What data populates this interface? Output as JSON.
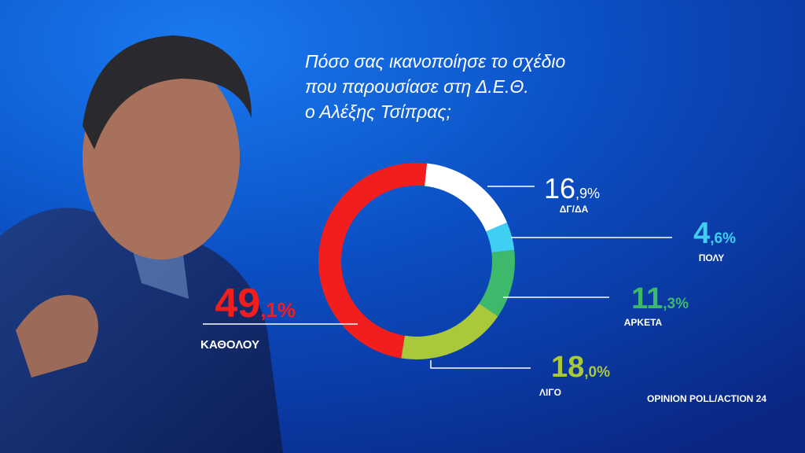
{
  "chart_data": {
    "type": "donut",
    "title_lines": [
      "Πόσο σας ικανοποίησε το σχέδιο",
      "που παρουσίασε στη Δ.Ε.Θ.",
      "ο Αλέξης Τσίπρας;"
    ],
    "categories": [
      "ΔΓ/ΔΑ",
      "ΠΟΛΥ",
      "ΑΡΚΕΤΑ",
      "ΛΙΓΟ",
      "ΚΑΘΟΛΟΥ"
    ],
    "values": [
      16.9,
      4.6,
      11.3,
      18.0,
      49.1
    ],
    "value_labels": [
      "16,9%",
      "4,6%",
      "11,3%",
      "18,0%",
      "49,1%"
    ],
    "colors": [
      "#ffffff",
      "#3ecff2",
      "#3cb96b",
      "#a9c93a",
      "#f21d1d"
    ],
    "source": "OPINION POLL/ACTION 24"
  }
}
